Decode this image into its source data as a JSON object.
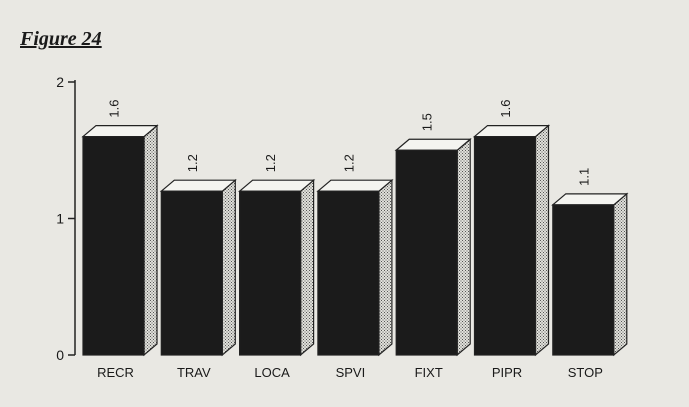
{
  "figure_title": "Figure 24",
  "chart_data": {
    "type": "bar",
    "title": "",
    "xlabel": "",
    "ylabel": "",
    "categories": [
      "RECR",
      "TRAV",
      "LOCA",
      "SPVI",
      "FIXT",
      "PIPR",
      "STOP"
    ],
    "values": [
      1.6,
      1.2,
      1.2,
      1.2,
      1.5,
      1.6,
      1.1
    ],
    "value_labels": [
      "1.6",
      "1.2",
      "1.2",
      "1.2",
      "1.5",
      "1.6",
      "1.1"
    ],
    "ylim": [
      0,
      2
    ],
    "yticks": [
      0,
      1,
      2
    ],
    "grid": false,
    "style": "3d",
    "colors": {
      "front": "#1b1b1b",
      "top": "#f4f4f0",
      "side": "#d2d2cc",
      "outline": "#222222"
    }
  }
}
